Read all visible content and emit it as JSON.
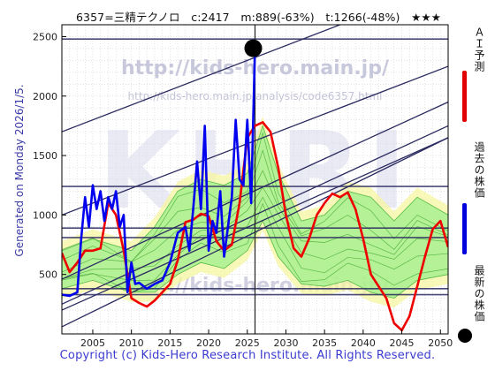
{
  "title": "6357=三精テクノロ　c:2417　m:889(-63%)　t:1266(-48%)　★★★",
  "generated_label": "Generated on Monday 2026/1/5.",
  "copyright": "Copyright (c) Kids-Hero Research Institute. All Rights Reserved.",
  "watermark": {
    "url": "http://kids-hero.main.jp/",
    "sub_url": "http://kids-hero.main.jp/analysis/code6357.html",
    "big": "KHRI"
  },
  "legend": [
    {
      "label": "ＡＩ予測",
      "color": "#e00000",
      "kind": "line"
    },
    {
      "label": "過去の株価",
      "color": "#0000dd",
      "kind": "line"
    },
    {
      "label": "最新の株価",
      "color": "#000000",
      "kind": "dot"
    }
  ],
  "colors": {
    "actual": "#0000ee",
    "ai": "#ee0000",
    "band_green": "#99ee88",
    "band_yellow": "#f5f5a0",
    "channel": "#2a2a60",
    "frame": "#000000"
  },
  "chart_data": {
    "type": "line",
    "xlim": [
      2001,
      2051
    ],
    "ylim": [
      0,
      2600
    ],
    "xticks": [
      2005,
      2010,
      2015,
      2020,
      2025,
      2030,
      2035,
      2040,
      2045,
      2050
    ],
    "yticks": [
      500,
      1000,
      1500,
      2000,
      2500
    ],
    "grid": true,
    "current_year": 2026,
    "current_price": 2417,
    "horizontal_levels": [
      2480,
      1240,
      890,
      810,
      380,
      330
    ],
    "trend_lines": [
      {
        "from": [
          2001,
          1700
        ],
        "to": [
          2051,
          2950
        ]
      },
      {
        "from": [
          2001,
          1000
        ],
        "to": [
          2051,
          2250
        ]
      },
      {
        "from": [
          2001,
          460
        ],
        "to": [
          2051,
          1950
        ]
      },
      {
        "from": [
          2001,
          250
        ],
        "to": [
          2051,
          1750
        ]
      },
      {
        "from": [
          2001,
          200
        ],
        "to": [
          2051,
          1650
        ]
      },
      {
        "from": [
          2001,
          60
        ],
        "to": [
          2051,
          1650
        ]
      }
    ],
    "series": [
      {
        "name": "過去の株価",
        "x": [
          2001,
          2002,
          2003,
          2003.5,
          2004,
          2004.5,
          2005,
          2005.5,
          2006,
          2006.5,
          2007,
          2007.5,
          2008,
          2008.5,
          2009,
          2009.5,
          2010,
          2010.5,
          2011,
          2012,
          2013,
          2014,
          2015,
          2016,
          2017,
          2017.5,
          2018,
          2018.5,
          2019,
          2019.5,
          2020,
          2020.5,
          2021,
          2021.5,
          2022,
          2022.5,
          2023,
          2023.5,
          2024,
          2024.5,
          2025,
          2025.5,
          2026
        ],
        "y": [
          330,
          320,
          350,
          800,
          1150,
          900,
          1250,
          1050,
          1200,
          950,
          1150,
          1050,
          1200,
          900,
          1000,
          350,
          600,
          420,
          430,
          380,
          420,
          450,
          600,
          850,
          900,
          700,
          1050,
          1450,
          1050,
          1750,
          700,
          950,
          850,
          1200,
          650,
          900,
          1150,
          1800,
          1300,
          1250,
          1800,
          1100,
          2417
        ]
      },
      {
        "name": "ＡＩ予測",
        "x": [
          2001,
          2002,
          2003,
          2004,
          2005,
          2006,
          2007,
          2008,
          2009,
          2010,
          2011,
          2012,
          2013,
          2014,
          2015,
          2016,
          2017,
          2018,
          2019,
          2020,
          2021,
          2022,
          2023,
          2024,
          2025,
          2026,
          2027,
          2028,
          2029,
          2030,
          2031,
          2032,
          2033,
          2034,
          2035,
          2036,
          2037,
          2038,
          2039,
          2040,
          2041,
          2042,
          2043,
          2044,
          2045,
          2046,
          2047,
          2048,
          2049,
          2050,
          2051
        ],
        "y": [
          680,
          520,
          600,
          700,
          700,
          720,
          1100,
          1000,
          700,
          300,
          260,
          230,
          280,
          350,
          420,
          620,
          940,
          960,
          1010,
          990,
          780,
          700,
          750,
          1100,
          1650,
          1750,
          1780,
          1700,
          1400,
          1000,
          720,
          650,
          800,
          1000,
          1100,
          1180,
          1150,
          1190,
          1050,
          800,
          500,
          400,
          300,
          90,
          30,
          150,
          400,
          650,
          880,
          950,
          730
        ]
      },
      {
        "name": "band_upper",
        "x": [
          2001,
          2005,
          2010,
          2013,
          2016,
          2019,
          2022,
          2025,
          2027,
          2029,
          2032,
          2035,
          2038,
          2041,
          2044,
          2047,
          2051
        ],
        "y": [
          700,
          800,
          700,
          900,
          1200,
          1300,
          1250,
          1350,
          1750,
          1350,
          950,
          1000,
          1200,
          1150,
          950,
          1150,
          1000
        ]
      },
      {
        "name": "band_lower",
        "x": [
          2001,
          2005,
          2010,
          2013,
          2016,
          2019,
          2022,
          2025,
          2027,
          2029,
          2032,
          2035,
          2038,
          2041,
          2044,
          2047,
          2051
        ],
        "y": [
          380,
          450,
          350,
          350,
          500,
          600,
          550,
          700,
          950,
          650,
          420,
          400,
          450,
          350,
          300,
          450,
          500
        ]
      }
    ]
  }
}
